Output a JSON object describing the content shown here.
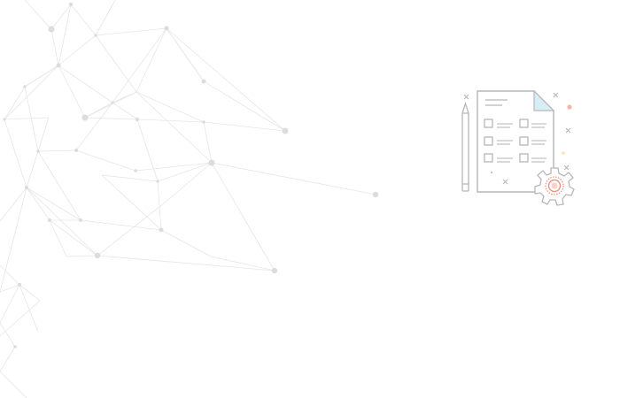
{
  "colors": {
    "background": "#ffffff",
    "network_line": "#e3e3e3",
    "network_node": "#dcdcdc",
    "illustration_stroke": "#b7b7b7",
    "page_fold": "#d8eef6",
    "gear_accent": "#f08a78",
    "sparkle_accent": "#f4b6a8",
    "sparkle_yellow": "#f3e6b0"
  },
  "icons": {
    "illustration": "checklist-document-with-gear-icon",
    "pencil": "pencil-icon",
    "gear": "gear-icon",
    "sparkles": "sparkle-icon"
  }
}
